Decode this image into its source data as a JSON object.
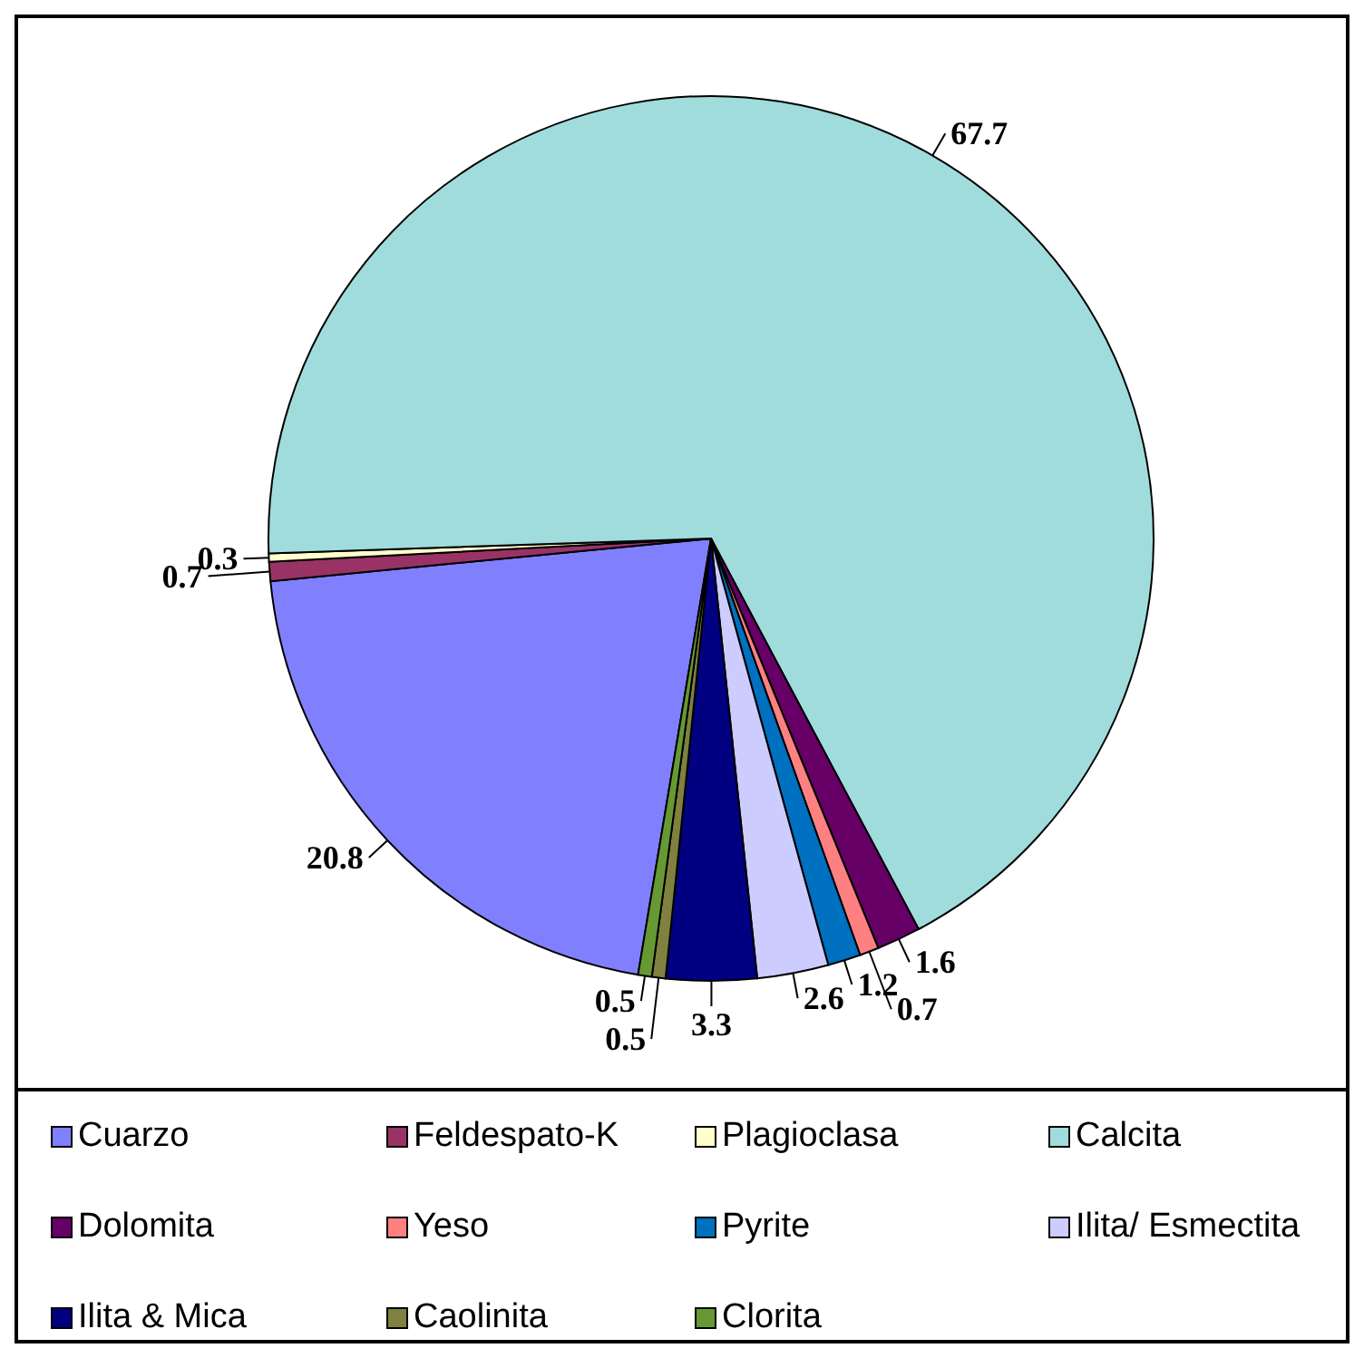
{
  "chart_data": {
    "type": "pie",
    "categories": [
      "Cuarzo",
      "Feldespato-K",
      "Plagioclasa",
      "Calcita",
      "Dolomita",
      "Yeso",
      "Pyrite",
      "Ilita/ Esmectita",
      "Ilita & Mica",
      "Caolinita",
      "Clorita"
    ],
    "values": [
      20.8,
      0.7,
      0.3,
      67.7,
      1.6,
      0.7,
      1.2,
      2.6,
      3.3,
      0.5,
      0.5
    ],
    "colors": [
      "#8080ff",
      "#993366",
      "#ffffcc",
      "#a0dcdc",
      "#660066",
      "#ff8080",
      "#0070c0",
      "#ccccff",
      "#000080",
      "#808040",
      "#669933"
    ],
    "data_labels": true,
    "legend": "bottom"
  }
}
